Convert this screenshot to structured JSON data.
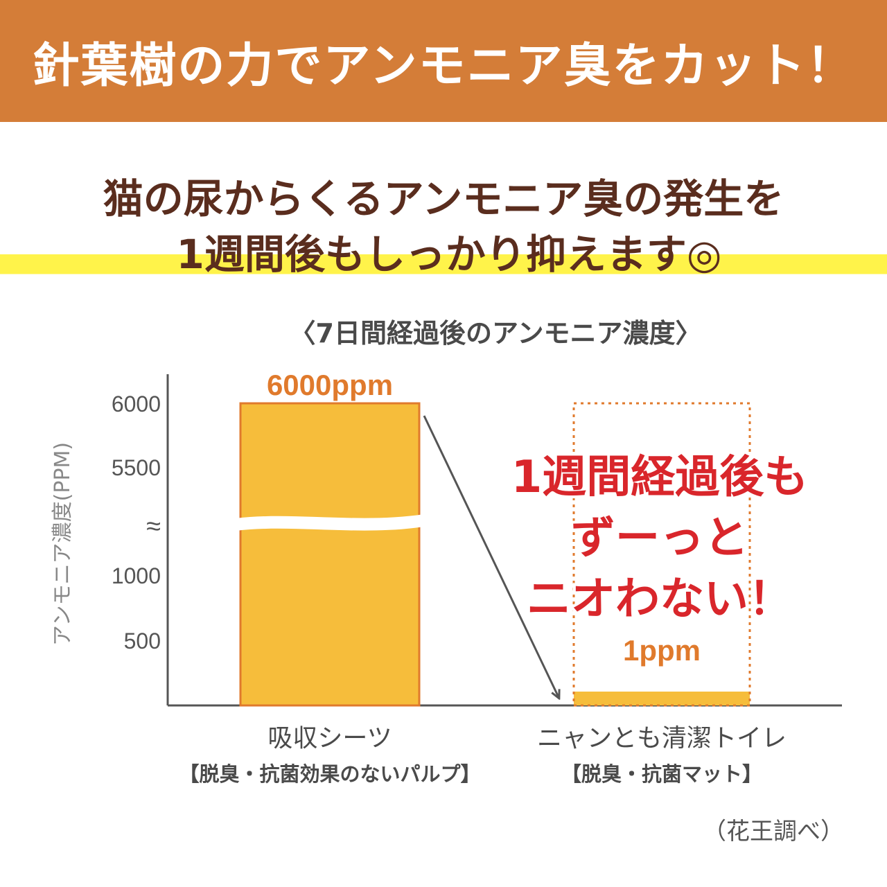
{
  "banner": {
    "title": "針葉樹の力でアンモニア臭をカット！"
  },
  "headline": {
    "line1": "猫の尿からくるアンモニア臭の発生を",
    "line2": "1週間後もしっかり抑えます◎"
  },
  "chart_data": {
    "type": "bar",
    "title": "〈7日間経過後のアンモニア濃度〉",
    "ylabel": "アンモニア濃度(PPM)",
    "yticks": [
      "6000",
      "5500",
      "≈",
      "1000",
      "500"
    ],
    "axis_break": true,
    "categories": [
      {
        "name": "吸収シーツ",
        "sub": "【脱臭・抗菌効果のないパルプ】"
      },
      {
        "name": "ニャンとも清潔トイレ",
        "sub": "【脱臭・抗菌マット】"
      }
    ],
    "values": [
      6000,
      1
    ],
    "value_labels": [
      "6000ppm",
      "1ppm"
    ],
    "callout": [
      "1週間経過後も",
      "ずーっと",
      "ニオわない！"
    ],
    "source": "（花王調べ）",
    "colors": {
      "bar_fill": "#F6BD3B",
      "bar_border": "#E07A2C",
      "value_label": "#E07A2C",
      "callout": "#D9262B",
      "axis": "#555555"
    }
  }
}
